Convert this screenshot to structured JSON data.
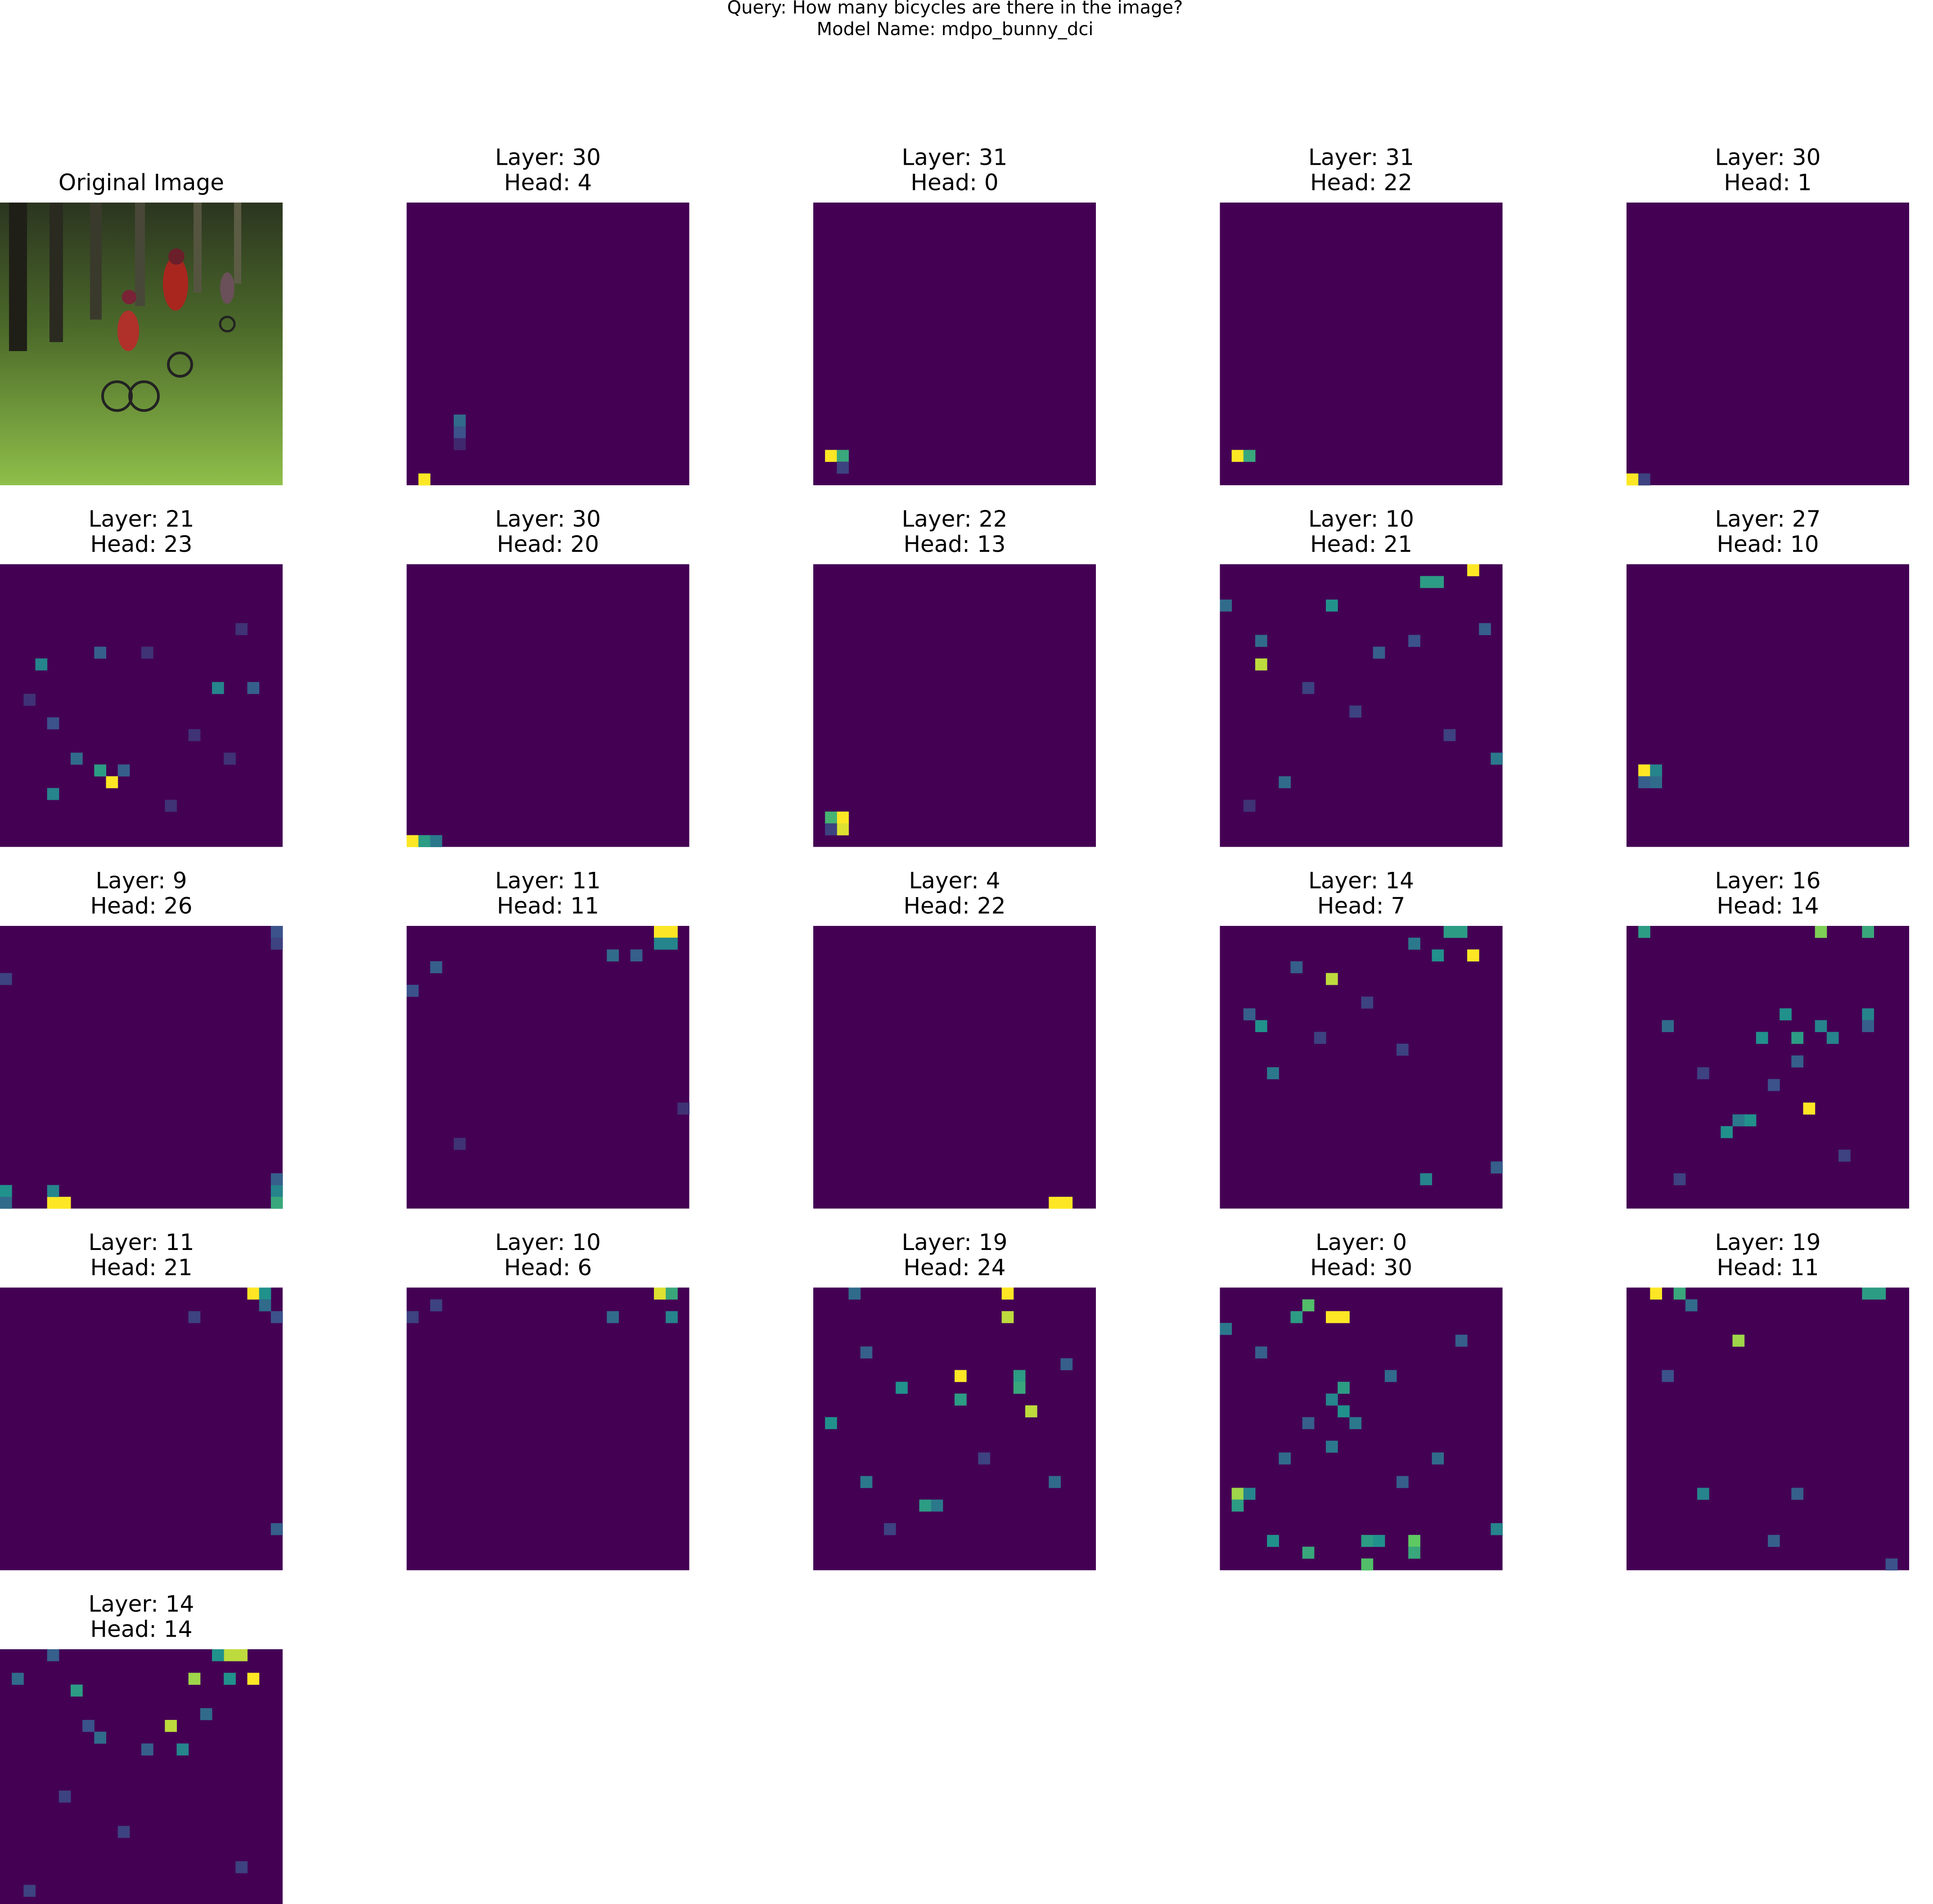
{
  "suptitle_lines": [
    "Query: How many bicycles are there in the image?",
    "Model Name: mdpo_bunny_dci"
  ],
  "image_title": "Original Image",
  "panels": [
    {
      "layer": "Layer: 30",
      "head": "Head: 4",
      "cells": [
        [
          1,
          23,
          1
        ],
        [
          4,
          18,
          0.35
        ],
        [
          4,
          19,
          0.25
        ],
        [
          4,
          20,
          0.12
        ]
      ]
    },
    {
      "layer": "Layer: 31",
      "head": "Head: 0",
      "cells": [
        [
          1,
          21,
          1
        ],
        [
          2,
          21,
          0.6
        ],
        [
          2,
          22,
          0.2
        ]
      ]
    },
    {
      "layer": "Layer: 31",
      "head": "Head: 22",
      "cells": [
        [
          1,
          21,
          1
        ],
        [
          2,
          21,
          0.6
        ]
      ]
    },
    {
      "layer": "Layer: 30",
      "head": "Head: 1",
      "cells": [
        [
          0,
          23,
          1
        ],
        [
          1,
          23,
          0.2
        ]
      ]
    },
    {
      "layer": "Layer: 21",
      "head": "Head: 23",
      "cells": [
        [
          9,
          18,
          1
        ],
        [
          8,
          17,
          0.55
        ],
        [
          3,
          8,
          0.45
        ],
        [
          8,
          7,
          0.3
        ],
        [
          18,
          10,
          0.45
        ],
        [
          21,
          10,
          0.3
        ],
        [
          4,
          19,
          0.45
        ],
        [
          6,
          16,
          0.35
        ],
        [
          4,
          13,
          0.25
        ],
        [
          10,
          17,
          0.3
        ],
        [
          12,
          7,
          0.15
        ],
        [
          16,
          14,
          0.15
        ],
        [
          20,
          5,
          0.15
        ],
        [
          2,
          11,
          0.15
        ],
        [
          14,
          20,
          0.15
        ],
        [
          19,
          16,
          0.15
        ]
      ]
    },
    {
      "layer": "Layer: 30",
      "head": "Head: 20",
      "cells": [
        [
          0,
          23,
          1
        ],
        [
          1,
          23,
          0.55
        ],
        [
          2,
          23,
          0.4
        ]
      ]
    },
    {
      "layer": "Layer: 22",
      "head": "Head: 13",
      "cells": [
        [
          2,
          21,
          1
        ],
        [
          2,
          22,
          0.95
        ],
        [
          1,
          21,
          0.65
        ],
        [
          1,
          22,
          0.2
        ]
      ]
    },
    {
      "layer": "Layer: 10",
      "head": "Head: 21",
      "cells": [
        [
          21,
          0,
          1
        ],
        [
          17,
          1,
          0.55
        ],
        [
          18,
          1,
          0.55
        ],
        [
          3,
          8,
          0.9
        ],
        [
          9,
          3,
          0.5
        ],
        [
          3,
          6,
          0.35
        ],
        [
          23,
          16,
          0.4
        ],
        [
          5,
          18,
          0.35
        ],
        [
          0,
          3,
          0.35
        ],
        [
          22,
          5,
          0.3
        ],
        [
          13,
          7,
          0.3
        ],
        [
          16,
          6,
          0.25
        ],
        [
          7,
          10,
          0.2
        ],
        [
          11,
          12,
          0.2
        ],
        [
          19,
          14,
          0.2
        ],
        [
          2,
          20,
          0.15
        ]
      ]
    },
    {
      "layer": "Layer: 27",
      "head": "Head: 10",
      "cells": [
        [
          1,
          17,
          1
        ],
        [
          2,
          17,
          0.45
        ],
        [
          1,
          18,
          0.3
        ],
        [
          2,
          18,
          0.35
        ]
      ]
    },
    {
      "layer": "Layer: 9",
      "head": "Head: 26",
      "cells": [
        [
          4,
          23,
          1
        ],
        [
          5,
          23,
          1
        ],
        [
          4,
          22,
          0.45
        ],
        [
          0,
          22,
          0.5
        ],
        [
          0,
          23,
          0.35
        ],
        [
          23,
          22,
          0.45
        ],
        [
          23,
          23,
          0.6
        ],
        [
          23,
          21,
          0.3
        ],
        [
          23,
          0,
          0.25
        ],
        [
          23,
          1,
          0.2
        ],
        [
          0,
          4,
          0.2
        ]
      ]
    },
    {
      "layer": "Layer: 11",
      "head": "Head: 11",
      "cells": [
        [
          21,
          0,
          1
        ],
        [
          22,
          0,
          1
        ],
        [
          21,
          1,
          0.45
        ],
        [
          22,
          1,
          0.45
        ],
        [
          17,
          2,
          0.35
        ],
        [
          19,
          2,
          0.3
        ],
        [
          2,
          3,
          0.3
        ],
        [
          0,
          5,
          0.25
        ],
        [
          4,
          18,
          0.15
        ],
        [
          23,
          15,
          0.15
        ]
      ]
    },
    {
      "layer": "Layer: 4",
      "head": "Head: 22",
      "cells": [
        [
          20,
          23,
          1
        ],
        [
          21,
          23,
          1
        ]
      ]
    },
    {
      "layer": "Layer: 14",
      "head": "Head: 7",
      "cells": [
        [
          21,
          2,
          1
        ],
        [
          9,
          4,
          0.9
        ],
        [
          19,
          0,
          0.55
        ],
        [
          20,
          0,
          0.55
        ],
        [
          16,
          1,
          0.4
        ],
        [
          18,
          2,
          0.5
        ],
        [
          3,
          8,
          0.5
        ],
        [
          4,
          12,
          0.4
        ],
        [
          17,
          21,
          0.45
        ],
        [
          23,
          20,
          0.3
        ],
        [
          2,
          7,
          0.3
        ],
        [
          6,
          3,
          0.3
        ],
        [
          12,
          6,
          0.2
        ],
        [
          8,
          9,
          0.2
        ],
        [
          15,
          10,
          0.2
        ]
      ]
    },
    {
      "layer": "Layer: 16",
      "head": "Head: 14",
      "cells": [
        [
          15,
          15,
          1
        ],
        [
          1,
          0,
          0.55
        ],
        [
          16,
          0,
          0.8
        ],
        [
          20,
          0,
          0.6
        ],
        [
          13,
          7,
          0.5
        ],
        [
          14,
          9,
          0.55
        ],
        [
          17,
          9,
          0.45
        ],
        [
          11,
          9,
          0.5
        ],
        [
          16,
          8,
          0.45
        ],
        [
          20,
          7,
          0.45
        ],
        [
          8,
          17,
          0.5
        ],
        [
          3,
          8,
          0.35
        ],
        [
          10,
          16,
          0.5
        ],
        [
          9,
          16,
          0.4
        ],
        [
          20,
          8,
          0.3
        ],
        [
          14,
          11,
          0.3
        ],
        [
          6,
          12,
          0.2
        ],
        [
          18,
          19,
          0.2
        ],
        [
          4,
          21,
          0.2
        ],
        [
          12,
          13,
          0.25
        ]
      ]
    },
    {
      "layer": "Layer: 11",
      "head": "Head: 21",
      "cells": [
        [
          21,
          0,
          1
        ],
        [
          22,
          0,
          0.5
        ],
        [
          22,
          1,
          0.35
        ],
        [
          23,
          2,
          0.25
        ],
        [
          16,
          2,
          0.2
        ],
        [
          23,
          20,
          0.3
        ]
      ]
    },
    {
      "layer": "Layer: 10",
      "head": "Head: 6",
      "cells": [
        [
          21,
          0,
          0.95
        ],
        [
          22,
          0,
          0.6
        ],
        [
          22,
          2,
          0.45
        ],
        [
          17,
          2,
          0.35
        ],
        [
          2,
          1,
          0.2
        ],
        [
          0,
          2,
          0.2
        ]
      ]
    },
    {
      "layer": "Layer: 19",
      "head": "Head: 24",
      "cells": [
        [
          16,
          0,
          1
        ],
        [
          16,
          2,
          0.9
        ],
        [
          12,
          7,
          1
        ],
        [
          12,
          9,
          0.55
        ],
        [
          17,
          7,
          0.55
        ],
        [
          17,
          8,
          0.6
        ],
        [
          18,
          10,
          0.9
        ],
        [
          3,
          0,
          0.35
        ],
        [
          1,
          11,
          0.5
        ],
        [
          9,
          18,
          0.55
        ],
        [
          10,
          18,
          0.4
        ],
        [
          4,
          16,
          0.4
        ],
        [
          20,
          16,
          0.35
        ],
        [
          7,
          8,
          0.5
        ],
        [
          4,
          5,
          0.3
        ],
        [
          21,
          6,
          0.3
        ],
        [
          14,
          14,
          0.2
        ],
        [
          6,
          20,
          0.2
        ]
      ]
    },
    {
      "layer": "Layer: 0",
      "head": "Head: 30",
      "cells": [
        [
          9,
          2,
          1
        ],
        [
          10,
          2,
          1
        ],
        [
          7,
          1,
          0.7
        ],
        [
          6,
          2,
          0.55
        ],
        [
          1,
          17,
          0.85
        ],
        [
          1,
          18,
          0.55
        ],
        [
          2,
          17,
          0.45
        ],
        [
          10,
          8,
          0.55
        ],
        [
          10,
          10,
          0.5
        ],
        [
          9,
          9,
          0.45
        ],
        [
          11,
          11,
          0.4
        ],
        [
          16,
          21,
          0.75
        ],
        [
          16,
          22,
          0.6
        ],
        [
          12,
          21,
          0.55
        ],
        [
          13,
          21,
          0.5
        ],
        [
          4,
          21,
          0.5
        ],
        [
          7,
          22,
          0.6
        ],
        [
          12,
          23,
          0.7
        ],
        [
          0,
          3,
          0.4
        ],
        [
          23,
          20,
          0.45
        ],
        [
          5,
          14,
          0.35
        ],
        [
          18,
          14,
          0.35
        ],
        [
          9,
          13,
          0.4
        ],
        [
          14,
          7,
          0.35
        ],
        [
          3,
          5,
          0.3
        ],
        [
          20,
          4,
          0.3
        ],
        [
          7,
          11,
          0.3
        ],
        [
          15,
          16,
          0.3
        ]
      ]
    },
    {
      "layer": "Layer: 19",
      "head": "Head: 11",
      "cells": [
        [
          2,
          0,
          1
        ],
        [
          4,
          0,
          0.6
        ],
        [
          20,
          0,
          0.55
        ],
        [
          21,
          0,
          0.55
        ],
        [
          9,
          4,
          0.85
        ],
        [
          5,
          1,
          0.35
        ],
        [
          6,
          17,
          0.45
        ],
        [
          12,
          21,
          0.3
        ],
        [
          3,
          7,
          0.25
        ],
        [
          22,
          23,
          0.25
        ],
        [
          14,
          17,
          0.3
        ]
      ]
    },
    {
      "layer": "Layer: 14",
      "head": "Head: 14",
      "cells": [
        [
          19,
          0,
          0.9
        ],
        [
          20,
          0,
          0.9
        ],
        [
          16,
          2,
          0.85
        ],
        [
          21,
          2,
          1
        ],
        [
          14,
          6,
          0.9
        ],
        [
          6,
          3,
          0.55
        ],
        [
          19,
          2,
          0.5
        ],
        [
          17,
          5,
          0.35
        ],
        [
          18,
          0,
          0.5
        ],
        [
          1,
          2,
          0.35
        ],
        [
          8,
          7,
          0.35
        ],
        [
          15,
          8,
          0.45
        ],
        [
          12,
          8,
          0.3
        ],
        [
          7,
          6,
          0.25
        ],
        [
          4,
          0,
          0.3
        ],
        [
          17,
          23,
          0.4
        ],
        [
          18,
          23,
          0.4
        ],
        [
          5,
          12,
          0.2
        ],
        [
          10,
          15,
          0.2
        ],
        [
          20,
          18,
          0.2
        ],
        [
          2,
          20,
          0.2
        ]
      ]
    }
  ]
}
